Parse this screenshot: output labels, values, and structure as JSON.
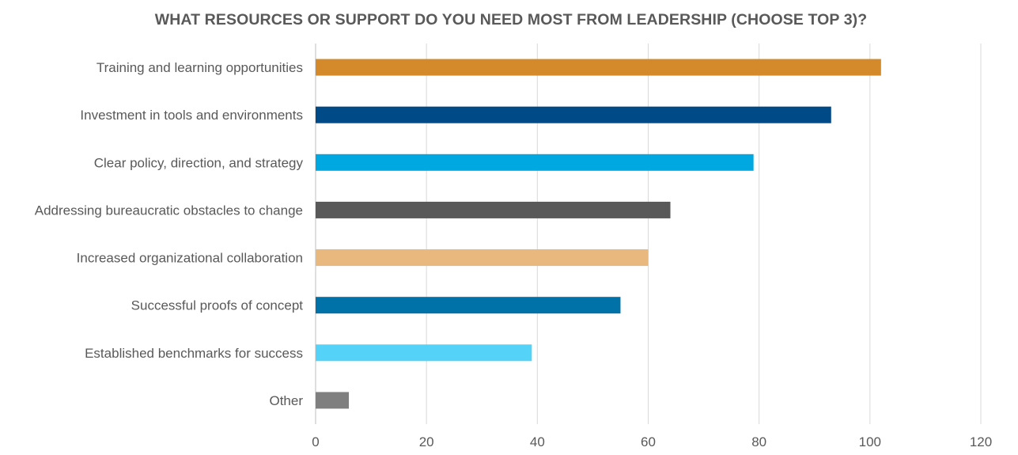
{
  "chart_data": {
    "type": "bar",
    "orientation": "horizontal",
    "title": "WHAT RESOURCES OR SUPPORT DO YOU NEED MOST FROM LEADERSHIP (CHOOSE TOP 3)?",
    "categories": [
      "Training and learning opportunities",
      "Investment in tools and environments",
      "Clear policy, direction, and strategy",
      "Addressing bureaucratic obstacles to change",
      "Increased organizational collaboration",
      "Successful proofs of concept",
      "Established benchmarks for success",
      "Other"
    ],
    "values": [
      102,
      93,
      79,
      64,
      60,
      55,
      39,
      6
    ],
    "colors": [
      "#D4892A",
      "#004A87",
      "#00A8E1",
      "#595959",
      "#E8B87E",
      "#0072A8",
      "#55D2F7",
      "#7F7F7F"
    ],
    "xlim": [
      0,
      120
    ],
    "xticks": [
      "0",
      "20",
      "40",
      "60",
      "80",
      "100",
      "120"
    ],
    "grid": true,
    "legend": "none",
    "xlabel": "",
    "ylabel": ""
  }
}
